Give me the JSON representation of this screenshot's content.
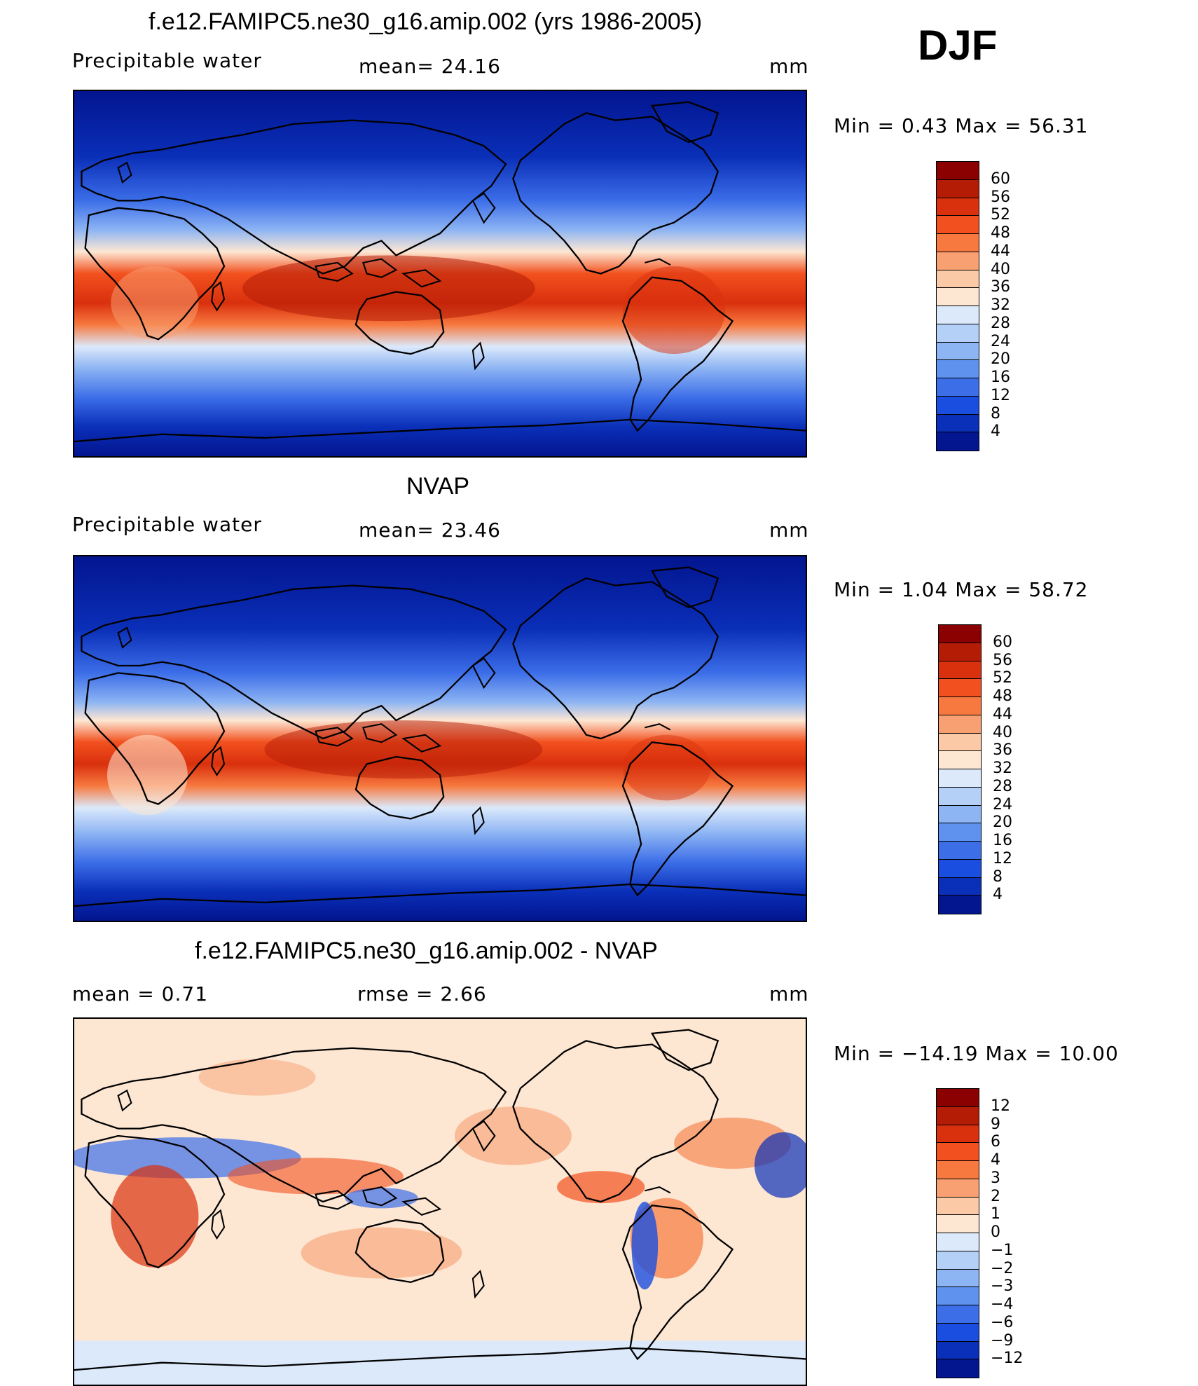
{
  "season": "DJF",
  "panels": [
    {
      "id": "model",
      "title": "f.e12.FAMIPC5.ne30_g16.amip.002 (yrs 1986-2005)",
      "left_label": "Precipitable  water",
      "mid_label": "mean=   24.16",
      "units": "mm",
      "minmax": "Min  =     0.43  Max  =    56.31",
      "levels": [
        "60",
        "56",
        "52",
        "48",
        "44",
        "40",
        "36",
        "32",
        "28",
        "24",
        "20",
        "16",
        "12",
        "8",
        "4"
      ],
      "colors": [
        "#8b0000",
        "#b51c05",
        "#d9300d",
        "#f2511f",
        "#f7793f",
        "#f8a072",
        "#fbc9a6",
        "#fde7d3",
        "#dbe9fb",
        "#b5d0f7",
        "#8db4f3",
        "#5e92ee",
        "#3c6ee8",
        "#1a4ee0",
        "#0a2fb8",
        "#03158f"
      ]
    },
    {
      "id": "obs",
      "title": "NVAP",
      "left_label": "Precipitable  water",
      "mid_label": "mean=   23.46",
      "units": "mm",
      "minmax": "Min  =     1.04  Max  =    58.72",
      "levels": [
        "60",
        "56",
        "52",
        "48",
        "44",
        "40",
        "36",
        "32",
        "28",
        "24",
        "20",
        "16",
        "12",
        "8",
        "4"
      ],
      "colors": [
        "#8b0000",
        "#b51c05",
        "#d9300d",
        "#f2511f",
        "#f7793f",
        "#f8a072",
        "#fbc9a6",
        "#fde7d3",
        "#dbe9fb",
        "#b5d0f7",
        "#8db4f3",
        "#5e92ee",
        "#3c6ee8",
        "#1a4ee0",
        "#0a2fb8",
        "#03158f"
      ]
    },
    {
      "id": "diff",
      "title": "f.e12.FAMIPC5.ne30_g16.amip.002 - NVAP",
      "left_label": "mean  =     0.71",
      "mid_label": "rmse  =     2.66",
      "units": "mm",
      "minmax": "Min  = −14.19  Max  =    10.00",
      "levels": [
        "12",
        "9",
        "6",
        "4",
        "3",
        "2",
        "1",
        "0",
        "−1",
        "−2",
        "−3",
        "−4",
        "−6",
        "−9",
        "−12"
      ],
      "colors": [
        "#8b0000",
        "#b51c05",
        "#d9300d",
        "#f2511f",
        "#f7793f",
        "#f8a072",
        "#fbc9a6",
        "#fde7d3",
        "#dbe9fb",
        "#b5d0f7",
        "#8db4f3",
        "#5e92ee",
        "#3c6ee8",
        "#1a4ee0",
        "#0a2fb8",
        "#03158f"
      ]
    }
  ]
}
